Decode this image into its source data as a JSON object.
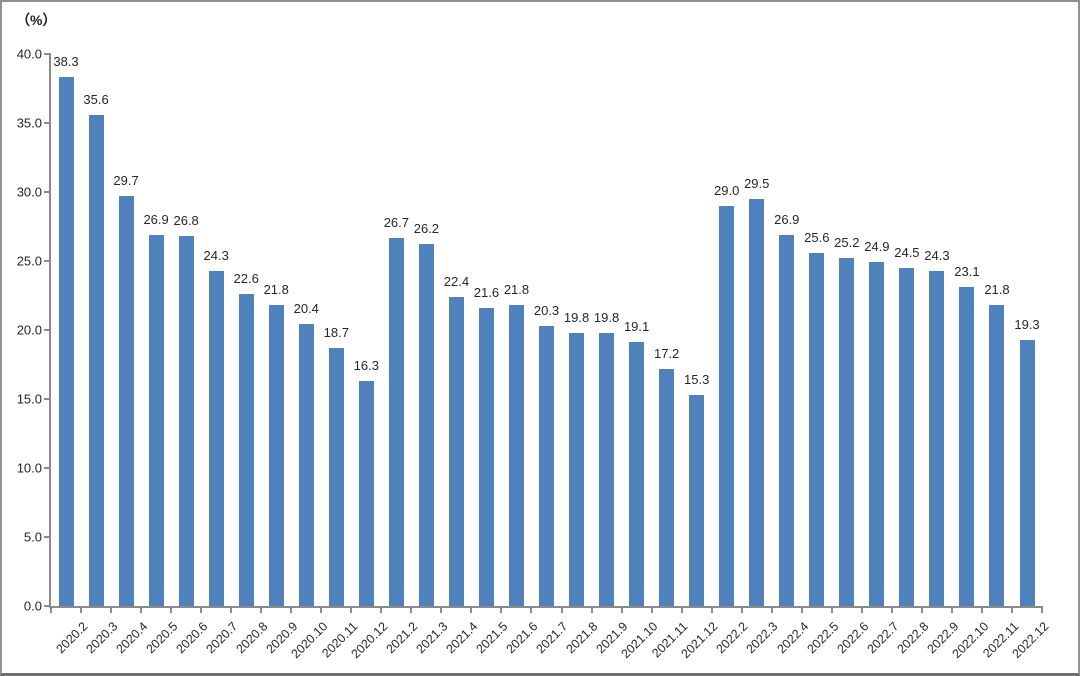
{
  "chart_data": {
    "type": "bar",
    "title": "",
    "unit_label": "（%）",
    "categories": [
      "2020.2",
      "2020.3",
      "2020.4",
      "2020.5",
      "2020.6",
      "2020.7",
      "2020.8",
      "2020.9",
      "2020.10",
      "2020.11",
      "2020.12",
      "2021.2",
      "2021.3",
      "2021.4",
      "2021.5",
      "2021.6",
      "2021.7",
      "2021.8",
      "2021.9",
      "2021.10",
      "2021.11",
      "2021.12",
      "2022.2",
      "2022.3",
      "2022.4",
      "2022.5",
      "2022.6",
      "2022.7",
      "2022.8",
      "2022.9",
      "2022.10",
      "2022.11",
      "2022.12"
    ],
    "values": [
      38.3,
      35.6,
      29.7,
      26.9,
      26.8,
      24.3,
      22.6,
      21.8,
      20.4,
      18.7,
      16.3,
      26.7,
      26.2,
      22.4,
      21.6,
      21.8,
      20.3,
      19.8,
      19.8,
      19.1,
      17.2,
      15.3,
      29.0,
      29.5,
      26.9,
      25.6,
      25.2,
      24.9,
      24.5,
      24.3,
      23.1,
      21.8,
      19.3
    ],
    "data_labels": true,
    "xlabel": "",
    "ylabel": "",
    "ylim": [
      0,
      40
    ],
    "y_tick_step": 5,
    "y_tick_labels": [
      "0.0",
      "5.0",
      "10.0",
      "15.0",
      "20.0",
      "25.0",
      "30.0",
      "35.0",
      "40.0"
    ],
    "grid": false,
    "legend_position": "none",
    "bar_color": "#4f81bd",
    "axis_color": "#8a8a8a",
    "label_color": "#262626",
    "x_label_rotation_deg": -45
  }
}
